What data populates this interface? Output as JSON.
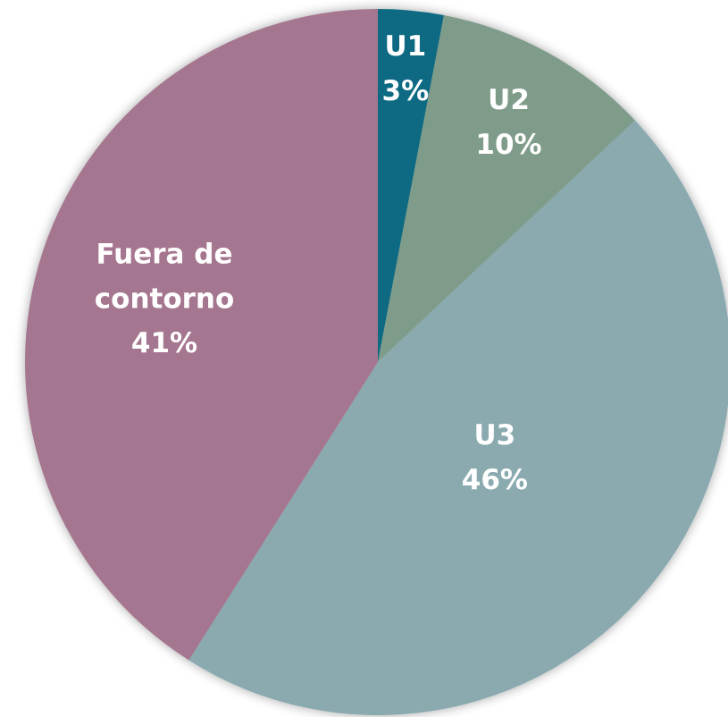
{
  "chart_data": {
    "type": "pie",
    "categories": [
      "U1",
      "U2",
      "U3",
      "Fuera de contorno"
    ],
    "values": [
      3,
      10,
      46,
      41
    ],
    "value_labels": [
      "3%",
      "10%",
      "46%",
      "41%"
    ],
    "colors": [
      "#0a6b82",
      "#7f9c8a",
      "#8aaab0",
      "#a5768f"
    ]
  }
}
